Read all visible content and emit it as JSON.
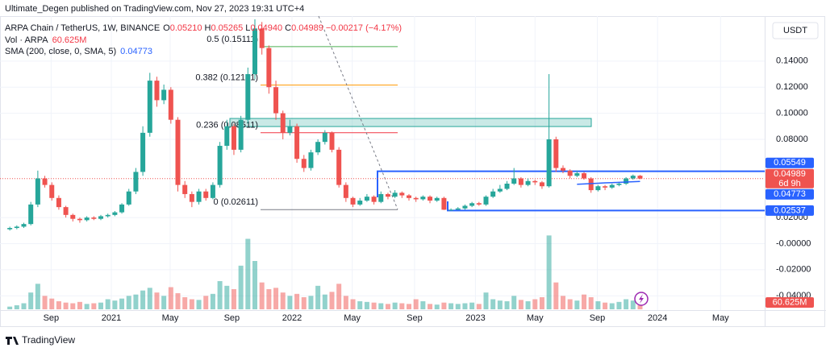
{
  "header": {
    "title": "Ultimate_Degen published on TradingView.com, Nov 27, 2023 19:31 UTC+4"
  },
  "legend": {
    "symbol": "ARPA Chain / TetherUS, 1W, BINANCE",
    "o_key": "O",
    "o": "0.05210",
    "h_key": "H",
    "h": "0.05265",
    "l_key": "L",
    "l": "0.04940",
    "c_key": "C",
    "c": "0.04989",
    "change": "−0.00217 (−4.17%)",
    "vol_name": "Vol · ARPA",
    "vol_value": "60.625M",
    "sma_name": "SMA (200, close, 0, SMA, 5)",
    "sma_value": "0.04773"
  },
  "currency": "USDT",
  "countdown": "6d 9h",
  "footer": {
    "brand": "TradingView"
  },
  "chart_data": {
    "type": "candlestick",
    "xlim": [
      -1.4,
      107.8
    ],
    "xticks": [
      {
        "value": 5.9,
        "label": "Sep"
      },
      {
        "value": 14.5,
        "label": "2021"
      },
      {
        "value": 22.9,
        "label": "May"
      },
      {
        "value": 31.7,
        "label": "Sep"
      },
      {
        "value": 40.3,
        "label": "2022"
      },
      {
        "value": 48.9,
        "label": "May"
      },
      {
        "value": 57.8,
        "label": "Sep"
      },
      {
        "value": 66.5,
        "label": "2023"
      },
      {
        "value": 75,
        "label": "May"
      },
      {
        "value": 83.9,
        "label": "Sep"
      },
      {
        "value": 92.5,
        "label": "2024"
      },
      {
        "value": 101.5,
        "label": "May"
      }
    ],
    "ylim": [
      -0.051,
      0.1745
    ],
    "yticks": [
      {
        "value": 0.14,
        "label": "0.14000"
      },
      {
        "value": 0.12,
        "label": "0.12000"
      },
      {
        "value": 0.1,
        "label": "0.10000"
      },
      {
        "value": 0.08,
        "label": "0.08000"
      },
      {
        "value": 0.02,
        "label": "0.02000"
      },
      {
        "value": 0,
        "label": "-0.00000"
      },
      {
        "value": -0.02,
        "label": "-0.02000"
      },
      {
        "value": -0.04,
        "label": "-0.04000"
      }
    ],
    "grid": true,
    "up_color": "#26a69a",
    "down_color": "#ef5350",
    "open": [
      0.011,
      0.012,
      0.013,
      0.015,
      0.03,
      0.05,
      0.045,
      0.035,
      0.028,
      0.022,
      0.019,
      0.018,
      0.02,
      0.019,
      0.021,
      0.022,
      0.024,
      0.03,
      0.04,
      0.055,
      0.085,
      0.125,
      0.11,
      0.118,
      0.095,
      0.045,
      0.038,
      0.032,
      0.04,
      0.035,
      0.045,
      0.075,
      0.09,
      0.072,
      0.095,
      0.13,
      0.165,
      0.15,
      0.12,
      0.1,
      0.085,
      0.09,
      0.065,
      0.058,
      0.07,
      0.078,
      0.085,
      0.072,
      0.045,
      0.035,
      0.03,
      0.033,
      0.036,
      0.032,
      0.038,
      0.036,
      0.039,
      0.037,
      0.035,
      0.034,
      0.036,
      0.033,
      0.035,
      0.026,
      0.026,
      0.027,
      0.029,
      0.031,
      0.03,
      0.036,
      0.04,
      0.042,
      0.046,
      0.05,
      0.045,
      0.048,
      0.047,
      0.044,
      0.08,
      0.058,
      0.056,
      0.052,
      0.054,
      0.05,
      0.041,
      0.044,
      0.043,
      0.045,
      0.046,
      0.05,
      0.0521
    ],
    "high": [
      0.013,
      0.014,
      0.016,
      0.032,
      0.056,
      0.052,
      0.047,
      0.037,
      0.029,
      0.023,
      0.02,
      0.021,
      0.021,
      0.022,
      0.023,
      0.025,
      0.031,
      0.042,
      0.058,
      0.09,
      0.131,
      0.128,
      0.122,
      0.12,
      0.097,
      0.048,
      0.04,
      0.042,
      0.042,
      0.047,
      0.078,
      0.095,
      0.092,
      0.098,
      0.135,
      0.172,
      0.17,
      0.152,
      0.125,
      0.102,
      0.095,
      0.092,
      0.068,
      0.072,
      0.08,
      0.087,
      0.086,
      0.074,
      0.047,
      0.036,
      0.035,
      0.038,
      0.037,
      0.04,
      0.039,
      0.041,
      0.04,
      0.038,
      0.036,
      0.037,
      0.037,
      0.036,
      0.036,
      0.027,
      0.028,
      0.03,
      0.032,
      0.032,
      0.037,
      0.042,
      0.045,
      0.048,
      0.058,
      0.051,
      0.05,
      0.049,
      0.048,
      0.13,
      0.082,
      0.06,
      0.057,
      0.056,
      0.055,
      0.051,
      0.045,
      0.045,
      0.046,
      0.047,
      0.051,
      0.053,
      0.05265
    ],
    "low": [
      0.01,
      0.011,
      0.012,
      0.014,
      0.028,
      0.043,
      0.033,
      0.026,
      0.02,
      0.017,
      0.016,
      0.017,
      0.018,
      0.018,
      0.02,
      0.021,
      0.023,
      0.029,
      0.038,
      0.052,
      0.082,
      0.105,
      0.107,
      0.092,
      0.04,
      0.035,
      0.028,
      0.03,
      0.033,
      0.034,
      0.043,
      0.072,
      0.068,
      0.07,
      0.092,
      0.126,
      0.145,
      0.115,
      0.095,
      0.08,
      0.083,
      0.062,
      0.055,
      0.056,
      0.068,
      0.076,
      0.07,
      0.043,
      0.032,
      0.028,
      0.029,
      0.032,
      0.03,
      0.031,
      0.034,
      0.035,
      0.035,
      0.033,
      0.032,
      0.033,
      0.031,
      0.032,
      0.0258,
      0.0254,
      0.0258,
      0.026,
      0.028,
      0.029,
      0.029,
      0.035,
      0.039,
      0.041,
      0.045,
      0.043,
      0.044,
      0.045,
      0.042,
      0.043,
      0.055,
      0.054,
      0.05,
      0.051,
      0.049,
      0.039,
      0.04,
      0.041,
      0.042,
      0.044,
      0.045,
      0.049,
      0.0494
    ],
    "close": [
      0.012,
      0.013,
      0.015,
      0.03,
      0.05,
      0.045,
      0.035,
      0.028,
      0.022,
      0.019,
      0.018,
      0.02,
      0.019,
      0.021,
      0.022,
      0.024,
      0.03,
      0.04,
      0.055,
      0.085,
      0.125,
      0.11,
      0.118,
      0.095,
      0.045,
      0.038,
      0.032,
      0.04,
      0.035,
      0.045,
      0.075,
      0.09,
      0.072,
      0.095,
      0.13,
      0.165,
      0.15,
      0.12,
      0.1,
      0.085,
      0.09,
      0.065,
      0.058,
      0.07,
      0.078,
      0.085,
      0.072,
      0.045,
      0.035,
      0.03,
      0.033,
      0.036,
      0.032,
      0.038,
      0.036,
      0.039,
      0.037,
      0.035,
      0.034,
      0.036,
      0.033,
      0.035,
      0.026,
      0.026,
      0.027,
      0.029,
      0.031,
      0.03,
      0.036,
      0.04,
      0.042,
      0.046,
      0.05,
      0.045,
      0.048,
      0.047,
      0.044,
      0.08,
      0.058,
      0.056,
      0.052,
      0.054,
      0.05,
      0.041,
      0.044,
      0.043,
      0.045,
      0.046,
      0.05,
      0.0521,
      0.04989
    ],
    "vlim": [
      0,
      1200
    ],
    "volume": [
      40,
      60,
      90,
      250,
      380,
      200,
      160,
      120,
      100,
      90,
      110,
      80,
      90,
      100,
      150,
      130,
      160,
      200,
      220,
      280,
      320,
      250,
      200,
      330,
      240,
      180,
      150,
      140,
      200,
      230,
      420,
      350,
      300,
      650,
      1050,
      720,
      400,
      300,
      320,
      250,
      200,
      230,
      180,
      200,
      350,
      220,
      260,
      380,
      200,
      150,
      120,
      110,
      100,
      90,
      80,
      100,
      90,
      80,
      150,
      120,
      80,
      70,
      100,
      90,
      80,
      90,
      100,
      80,
      250,
      150,
      130,
      120,
      200,
      140,
      120,
      150,
      180,
      1100,
      400,
      200,
      150,
      130,
      220,
      180,
      120,
      100,
      90,
      110,
      150,
      130,
      60.625
    ],
    "volume_last_label": "60.625M",
    "sma": {
      "name": "SMA",
      "color": "#2962ff",
      "values": [
        null,
        null,
        null,
        null,
        null,
        null,
        null,
        null,
        null,
        null,
        null,
        null,
        null,
        null,
        null,
        null,
        null,
        null,
        null,
        null,
        null,
        null,
        null,
        null,
        null,
        null,
        null,
        null,
        null,
        null,
        null,
        null,
        null,
        null,
        null,
        null,
        null,
        null,
        null,
        null,
        null,
        null,
        null,
        null,
        null,
        null,
        null,
        null,
        null,
        null,
        null,
        null,
        null,
        null,
        null,
        null,
        null,
        null,
        null,
        null,
        null,
        null,
        null,
        null,
        null,
        null,
        null,
        null,
        null,
        null,
        null,
        null,
        null,
        null,
        null,
        null,
        null,
        null,
        null,
        null,
        null,
        0.0455,
        0.0458,
        0.0461,
        0.0463,
        0.0466,
        0.0468,
        0.047,
        0.0472,
        0.0475,
        0.04773
      ]
    },
    "fib": [
      {
        "label": "0.5 (0.15111)",
        "value": 0.15111,
        "color": "#4caf50"
      },
      {
        "label": "0.382 (0.12161)",
        "value": 0.12161,
        "color": "#ff9800"
      },
      {
        "label": "0.236 (0.08511)",
        "value": 0.08511,
        "color": "#f23645"
      },
      {
        "label": "0 (0.02611)",
        "value": 0.02611,
        "color": "#787b86"
      }
    ],
    "zone": {
      "top": 0.096,
      "bottom": 0.0898,
      "color": "#26a69a"
    },
    "levels": [
      {
        "value": 0.05549,
        "color": "#2962ff"
      },
      {
        "value": 0.02537,
        "color": "#2962ff"
      }
    ],
    "last_price": {
      "value": 0.04989,
      "color": "#ef5350"
    },
    "sma_last": {
      "value": 0.04773,
      "color": "#2962ff"
    }
  }
}
